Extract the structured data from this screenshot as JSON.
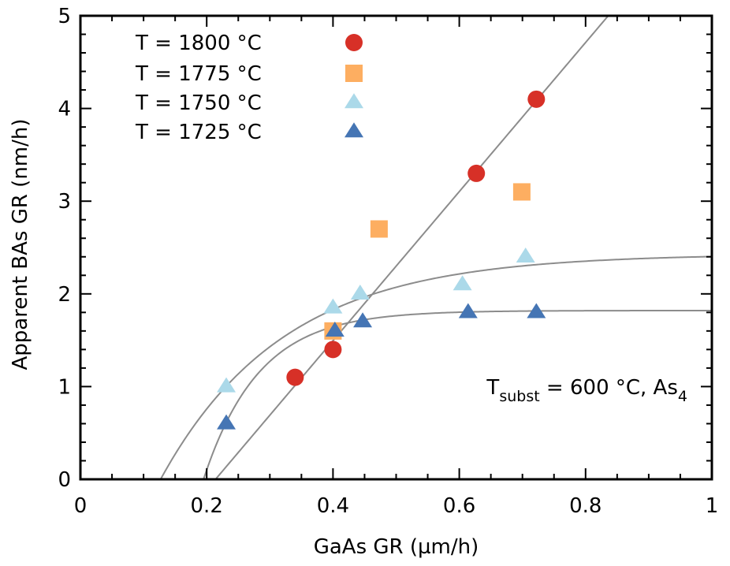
{
  "chart_data": {
    "type": "scatter",
    "title": "",
    "xlabel": "GaAs GR (µm/h)",
    "ylabel": "Apparent BAs GR (nm/h)",
    "xlim": [
      0,
      1
    ],
    "ylim": [
      0,
      5
    ],
    "x_ticks": [
      0,
      0.2,
      0.4,
      0.6,
      0.8,
      1
    ],
    "x_tick_labels": [
      "0",
      "0.2",
      "0.4",
      "0.6",
      "0.8",
      "1"
    ],
    "x_minor_step": 0.05,
    "y_ticks": [
      0,
      1,
      2,
      3,
      4,
      5
    ],
    "y_tick_labels": [
      "0",
      "1",
      "2",
      "3",
      "4",
      "5"
    ],
    "y_minor_step": 0.2,
    "grid": false,
    "legend_position": "top-left",
    "series": [
      {
        "name": "T = 1800 °C",
        "marker": "circle",
        "color": "#d73027",
        "points": [
          [
            0.34,
            1.1
          ],
          [
            0.4,
            1.4
          ],
          [
            0.627,
            3.3
          ],
          [
            0.722,
            4.1
          ]
        ]
      },
      {
        "name": "T = 1775 °C",
        "marker": "square",
        "color": "#fdae61",
        "points": [
          [
            0.4,
            1.6
          ],
          [
            0.473,
            2.7
          ],
          [
            0.699,
            3.1
          ]
        ]
      },
      {
        "name": "T = 1750 °C",
        "marker": "triangle",
        "color": "#abd9e9",
        "points": [
          [
            0.231,
            1.0
          ],
          [
            0.4,
            1.85
          ],
          [
            0.443,
            2.0
          ],
          [
            0.605,
            2.1
          ],
          [
            0.705,
            2.4
          ]
        ]
      },
      {
        "name": "T = 1725 °C",
        "marker": "triangle",
        "color": "#4575b4",
        "points": [
          [
            0.231,
            0.6
          ],
          [
            0.403,
            1.6
          ],
          [
            0.447,
            1.7
          ],
          [
            0.614,
            1.8
          ],
          [
            0.722,
            1.8
          ]
        ]
      }
    ],
    "fit_lines": [
      {
        "name": "linear-fit",
        "kind": "linear",
        "x0": 0.214,
        "slope": 8.04,
        "color": "#8c8c8c"
      },
      {
        "name": "saturation-fit-1750",
        "kind": "saturation",
        "amplitude": 2.43,
        "x0": 0.127,
        "tau": 0.195,
        "color": "#8c8c8c"
      },
      {
        "name": "saturation-fit-1725",
        "kind": "saturation",
        "amplitude": 1.82,
        "x0": 0.195,
        "tau": 0.0875,
        "color": "#8c8c8c"
      }
    ],
    "annotation": {
      "prefix": "T",
      "prefix_sub": "subst",
      "middle": " = 600 °C, As",
      "suffix_sub": "4"
    }
  }
}
